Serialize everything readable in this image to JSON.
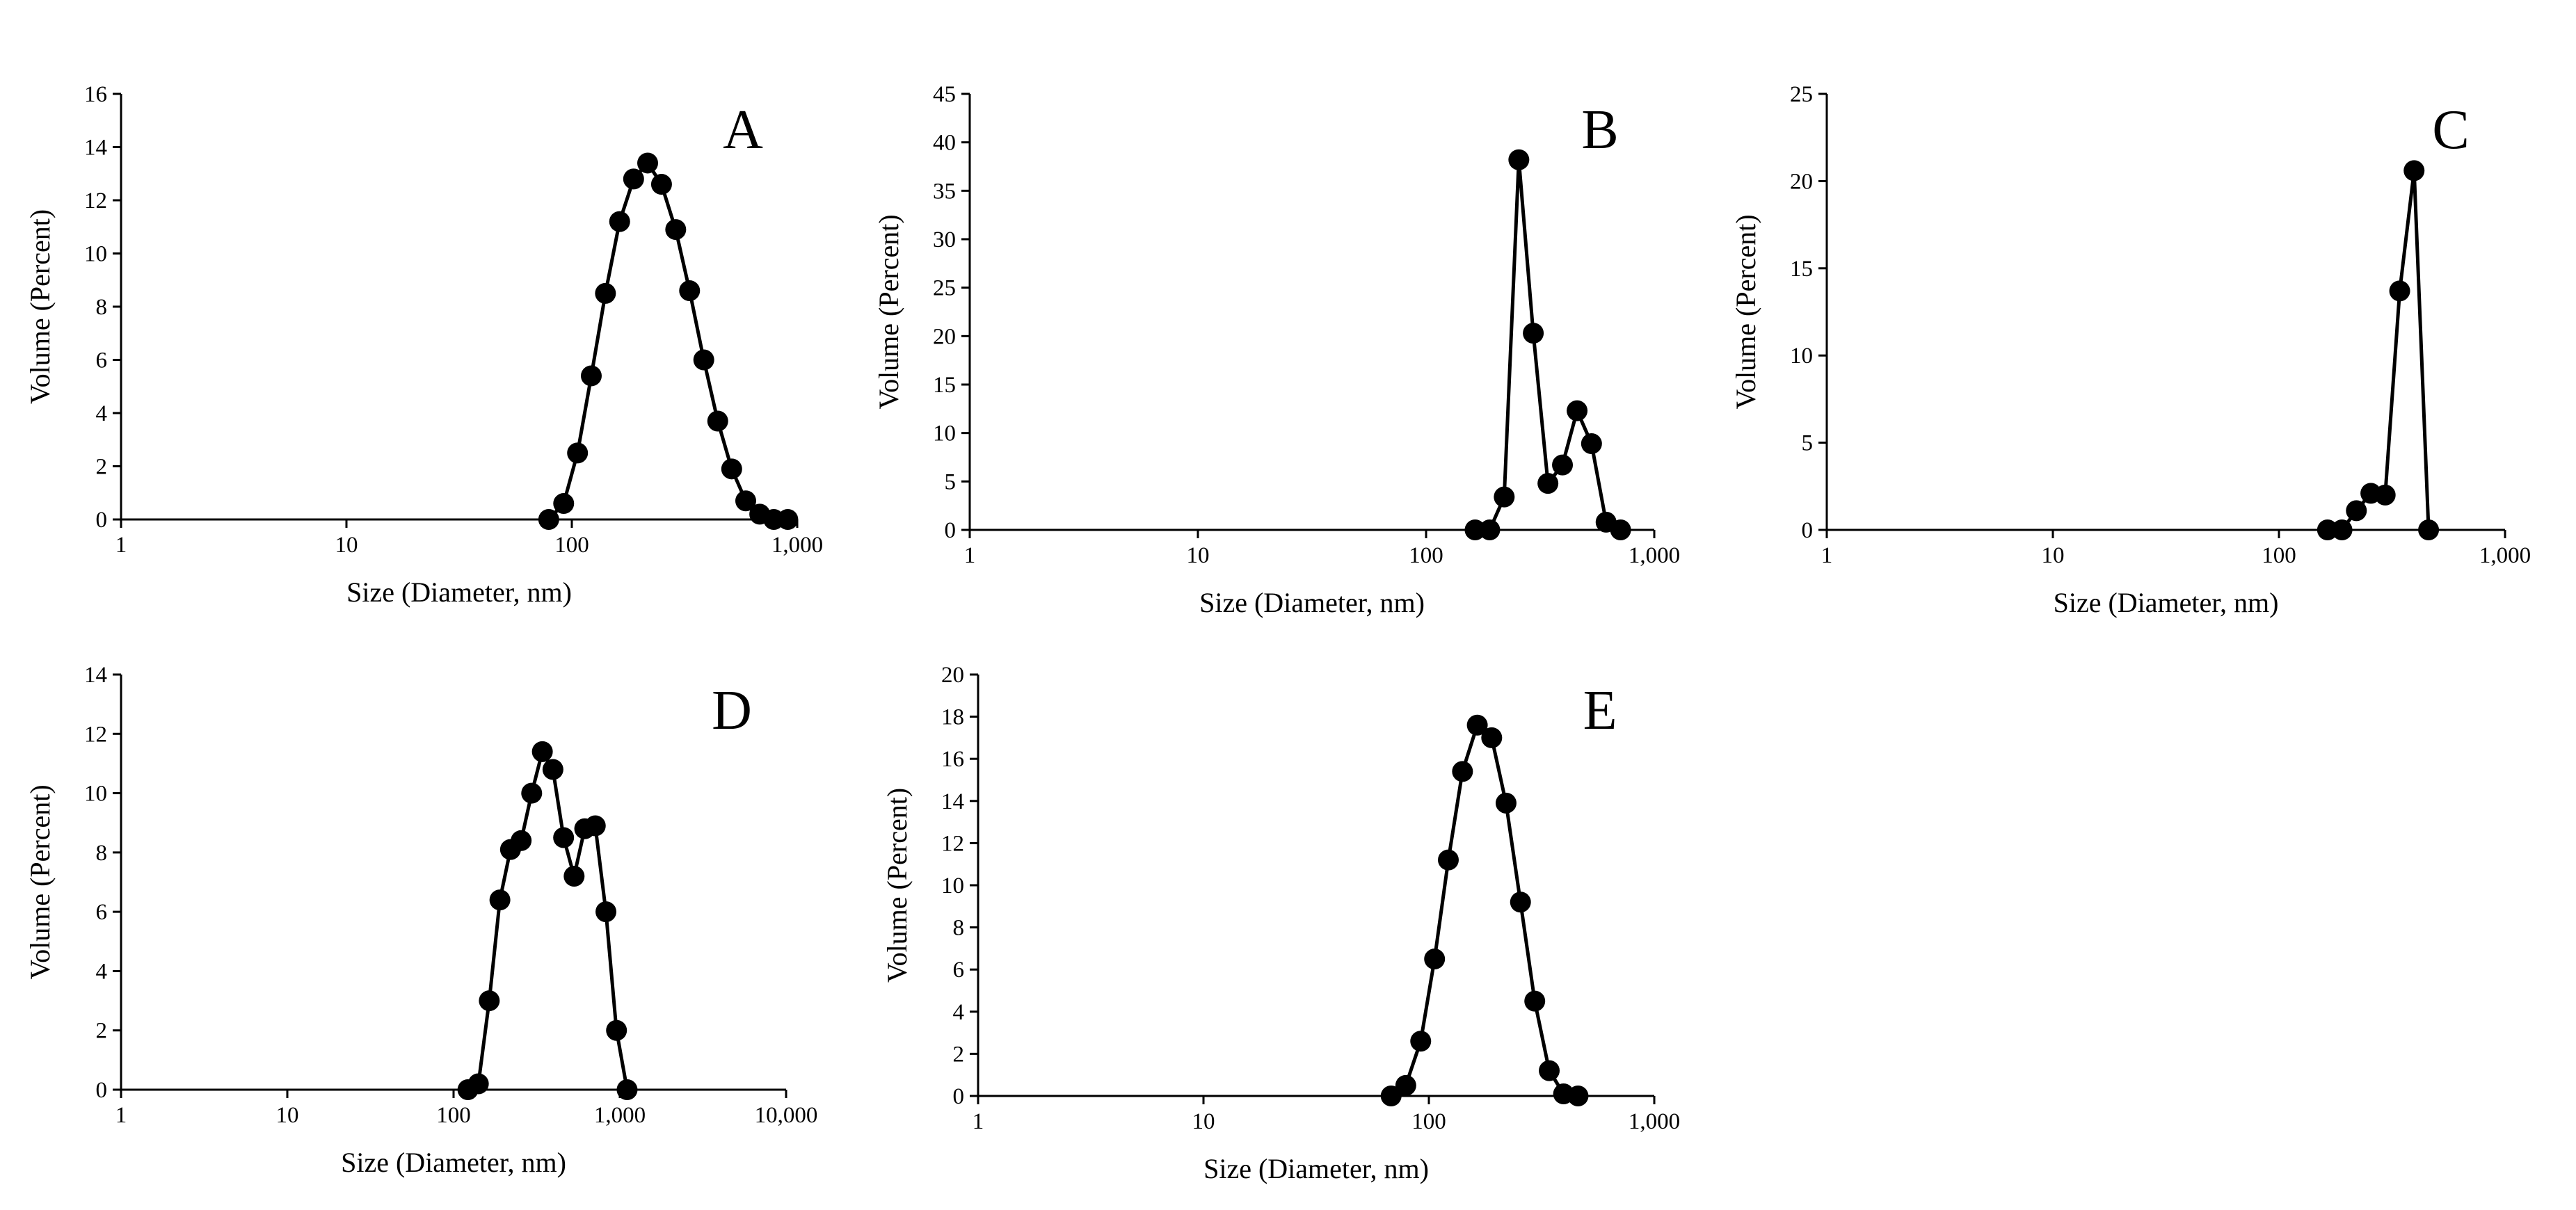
{
  "figure": {
    "marker_color": "#000000",
    "line_color": "#000000",
    "background": "#ffffff"
  },
  "chart_data": [
    {
      "type": "line",
      "panel_label": "A",
      "xlabel": "Size (Diameter, nm)",
      "ylabel": "Volume (Percent)",
      "x_scale": "log",
      "xlim": [
        1,
        1000
      ],
      "x_ticks": [
        1,
        10,
        100,
        1000
      ],
      "x_tick_labels": [
        "1",
        "10",
        "100",
        "1,000"
      ],
      "ylim": [
        0,
        16
      ],
      "y_ticks": [
        0,
        2,
        4,
        6,
        8,
        10,
        12,
        14,
        16
      ],
      "y_tick_labels": [
        "0",
        "2",
        "4",
        "6",
        "8",
        "10",
        "12",
        "14",
        "16"
      ],
      "series": [
        {
          "name": "A",
          "x": [
            79,
            92,
            106,
            122,
            141,
            163,
            188,
            217,
            250,
            289,
            333,
            385,
            444,
            512,
            591,
            682,
            787,
            908
          ],
          "y": [
            0.0,
            0.6,
            2.5,
            5.4,
            8.5,
            11.2,
            12.8,
            13.4,
            12.6,
            10.9,
            8.6,
            6.0,
            3.7,
            1.9,
            0.7,
            0.2,
            0.0,
            0.0
          ]
        }
      ]
    },
    {
      "type": "line",
      "panel_label": "B",
      "xlabel": "Size (Diameter, nm)",
      "ylabel": "Volume (Percent)",
      "x_scale": "log",
      "xlim": [
        1,
        1000
      ],
      "x_ticks": [
        1,
        10,
        100,
        1000
      ],
      "x_tick_labels": [
        "1",
        "10",
        "100",
        "1,000"
      ],
      "ylim": [
        0,
        45
      ],
      "y_ticks": [
        0,
        5,
        10,
        15,
        20,
        25,
        30,
        35,
        40,
        45
      ],
      "y_tick_labels": [
        "0",
        "5",
        "10",
        "15",
        "20",
        "25",
        "30",
        "35",
        "40",
        "45"
      ],
      "series": [
        {
          "name": "B",
          "x": [
            164,
            190,
            220,
            255,
            295,
            342,
            396,
            459,
            531,
            615,
            712
          ],
          "y": [
            0.0,
            0.0,
            3.4,
            38.2,
            20.3,
            4.8,
            6.7,
            12.3,
            8.9,
            0.8,
            0.0
          ]
        }
      ]
    },
    {
      "type": "line",
      "panel_label": "C",
      "xlabel": "Size (Diameter, nm)",
      "ylabel": "Volume (Percent)",
      "x_scale": "log",
      "xlim": [
        1,
        1000
      ],
      "x_ticks": [
        1,
        10,
        100,
        1000
      ],
      "x_tick_labels": [
        "1",
        "10",
        "100",
        "1,000"
      ],
      "ylim": [
        0,
        25
      ],
      "y_ticks": [
        0,
        5,
        10,
        15,
        20,
        25
      ],
      "y_tick_labels": [
        "0",
        "5",
        "10",
        "15",
        "20",
        "25"
      ],
      "series": [
        {
          "name": "C",
          "x": [
            164,
            190,
            220,
            255,
            295,
            342,
            396,
            459
          ],
          "y": [
            0.0,
            0.0,
            1.1,
            2.1,
            2.0,
            13.7,
            20.6,
            0.0
          ]
        }
      ]
    },
    {
      "type": "line",
      "panel_label": "D",
      "xlabel": "Size (Diameter, nm)",
      "ylabel": "Volume (Percent)",
      "x_scale": "log",
      "xlim": [
        1,
        10000
      ],
      "x_ticks": [
        1,
        10,
        100,
        1000,
        10000
      ],
      "x_tick_labels": [
        "1",
        "10",
        "100",
        "1,000",
        "10,000"
      ],
      "ylim": [
        0,
        14
      ],
      "y_ticks": [
        0,
        2,
        4,
        6,
        8,
        10,
        12,
        14
      ],
      "y_tick_labels": [
        "0",
        "2",
        "4",
        "6",
        "8",
        "10",
        "12",
        "14"
      ],
      "series": [
        {
          "name": "D",
          "x": [
            122,
            141,
            164,
            190,
            220,
            255,
            295,
            342,
            396,
            459,
            531,
            615,
            712,
            825,
            955,
            1106
          ],
          "y": [
            0.0,
            0.2,
            3.0,
            6.4,
            8.1,
            8.4,
            10.0,
            11.4,
            10.8,
            8.5,
            7.2,
            8.8,
            8.9,
            6.0,
            2.0,
            0.0
          ]
        }
      ]
    },
    {
      "type": "line",
      "panel_label": "E",
      "xlabel": "Size (Diameter, nm)",
      "ylabel": "Volume (Percent)",
      "x_scale": "log",
      "xlim": [
        1,
        1000
      ],
      "x_ticks": [
        1,
        10,
        100,
        1000
      ],
      "x_tick_labels": [
        "1",
        "10",
        "100",
        "1,000"
      ],
      "ylim": [
        0,
        20
      ],
      "y_ticks": [
        0,
        2,
        4,
        6,
        8,
        10,
        12,
        14,
        16,
        18,
        20
      ],
      "y_tick_labels": [
        "0",
        "2",
        "4",
        "6",
        "8",
        "10",
        "12",
        "14",
        "16",
        "18",
        "20"
      ],
      "series": [
        {
          "name": "E",
          "x": [
            68,
            79,
            92,
            106,
            122,
            141,
            164,
            190,
            220,
            255,
            295,
            342,
            396,
            459
          ],
          "y": [
            0.0,
            0.5,
            2.6,
            6.5,
            11.2,
            15.4,
            17.6,
            17.0,
            13.9,
            9.2,
            4.5,
            1.2,
            0.1,
            0.0
          ]
        }
      ]
    }
  ]
}
